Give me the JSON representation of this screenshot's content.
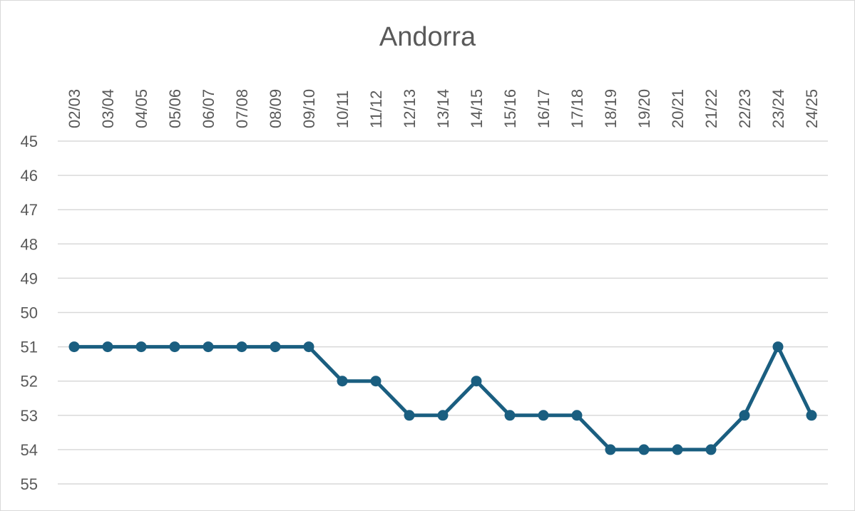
{
  "chart_data": {
    "type": "line",
    "title": "Andorra",
    "xlabel": "",
    "ylabel": "",
    "categories": [
      "02/03",
      "03/04",
      "04/05",
      "05/06",
      "06/07",
      "07/08",
      "08/09",
      "09/10",
      "10/11",
      "11/12",
      "12/13",
      "13/14",
      "14/15",
      "15/16",
      "16/17",
      "17/18",
      "18/19",
      "19/20",
      "20/21",
      "21/22",
      "22/23",
      "23/24",
      "24/25"
    ],
    "series": [
      {
        "values": [
          51,
          51,
          51,
          51,
          51,
          51,
          51,
          51,
          52,
          52,
          53,
          53,
          52,
          53,
          53,
          53,
          54,
          54,
          54,
          54,
          53,
          51,
          53
        ],
        "color": "#1a5e80"
      }
    ],
    "ylim": [
      45,
      55
    ],
    "y_ticks": [
      45,
      46,
      47,
      48,
      49,
      50,
      51,
      52,
      53,
      54,
      55
    ],
    "y_axis_reversed": true,
    "x_axis_position": "top",
    "x_tick_rotation": "vertical",
    "grid": true,
    "gridline_color": "#d9d9d9",
    "legend": "none",
    "markers": true
  }
}
